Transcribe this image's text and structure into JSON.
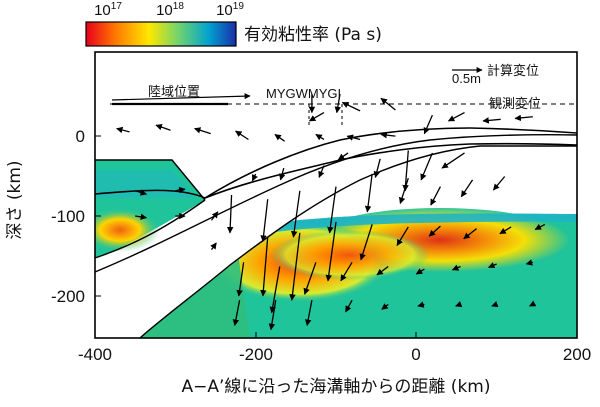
{
  "colorbar": {
    "tick_base": "10",
    "ticks": [
      {
        "exp": "17"
      },
      {
        "exp": "18"
      },
      {
        "exp": "19"
      }
    ],
    "title": "有効粘性率 (Pa s)",
    "colors": [
      "#e8001c",
      "#ff7a00",
      "#ffe800",
      "#6fd36f",
      "#00a2d0",
      "#1b2ea8"
    ]
  },
  "legend": {
    "scale_arrow_label": "0.5m",
    "computed_label": "計算変位",
    "observed_label": "観測変位",
    "land_label": "陸域位置",
    "stations_label": "MYGWMYGI"
  },
  "axes": {
    "xlabel": "A−A’線に沿った海溝軸からの距離 (km)",
    "ylabel": "深さ (km)"
  },
  "chart_data": {
    "type": "field",
    "title": "有効粘性率 (Pa s)",
    "xlabel": "A−A’線に沿った海溝軸からの距離 (km)",
    "ylabel": "深さ (km)",
    "xlim": [
      -400,
      200
    ],
    "ylim": [
      -250,
      90
    ],
    "xticks": [
      "-400",
      "-200",
      "0",
      "200"
    ],
    "yticks": [
      "0",
      "-100",
      "-200"
    ],
    "colorbar_range": [
      "10^17",
      "10^19"
    ],
    "grid": false,
    "arrows_computed": [
      {
        "x": -357,
        "y": -5,
        "dx": -16,
        "dy": 4
      },
      {
        "x": -306,
        "y": -3,
        "dx": -18,
        "dy": 6
      },
      {
        "x": -256,
        "y": -7,
        "dx": -20,
        "dy": 6
      },
      {
        "x": -209,
        "y": -14,
        "dx": -16,
        "dy": 10
      },
      {
        "x": -164,
        "y": -16,
        "dx": -12,
        "dy": 8
      },
      {
        "x": -115,
        "y": -14,
        "dx": -10,
        "dy": 6
      },
      {
        "x": -70,
        "y": -14,
        "dx": -16,
        "dy": 4
      },
      {
        "x": -26,
        "y": -10,
        "dx": -18,
        "dy": 2
      },
      {
        "x": -26,
        "y": 21,
        "dx": -18,
        "dy": 14
      },
      {
        "x": -70,
        "y": 20,
        "dx": -22,
        "dy": 10
      },
      {
        "x": -115,
        "y": 18,
        "dx": -18,
        "dy": -10
      },
      {
        "x": 20,
        "y": 15,
        "dx": -10,
        "dy": -22
      },
      {
        "x": 60,
        "y": 18,
        "dx": -20,
        "dy": -10
      },
      {
        "x": 105,
        "y": 10,
        "dx": -22,
        "dy": -2
      },
      {
        "x": 145,
        "y": 13,
        "dx": -22,
        "dy": -2
      },
      {
        "x": -10,
        "y": -27,
        "dx": -4,
        "dy": -48
      },
      {
        "x": 20,
        "y": -30,
        "dx": -14,
        "dy": -32
      },
      {
        "x": 60,
        "y": -30,
        "dx": -28,
        "dy": -18
      },
      {
        "x": -45,
        "y": -37,
        "dx": -6,
        "dy": -22
      },
      {
        "x": -85,
        "y": -30,
        "dx": -12,
        "dy": -8
      },
      {
        "x": -115,
        "y": -45,
        "dx": -6,
        "dy": -14
      },
      {
        "x": -165,
        "y": -48,
        "dx": -4,
        "dy": -14
      },
      {
        "x": -200,
        "y": -55,
        "dx": -4,
        "dy": -8
      },
      {
        "x": -230,
        "y": -80,
        "dx": -2,
        "dy": -45
      },
      {
        "x": -185,
        "y": -85,
        "dx": -6,
        "dy": -50
      },
      {
        "x": -145,
        "y": -75,
        "dx": -8,
        "dy": -55
      },
      {
        "x": -100,
        "y": -70,
        "dx": -8,
        "dy": -55
      },
      {
        "x": -55,
        "y": -55,
        "dx": -6,
        "dy": -45
      },
      {
        "x": -10,
        "y": -60,
        "dx": -10,
        "dy": -30
      },
      {
        "x": 30,
        "y": -70,
        "dx": -12,
        "dy": -22
      },
      {
        "x": 70,
        "y": -62,
        "dx": -14,
        "dy": -20
      },
      {
        "x": 110,
        "y": -58,
        "dx": -14,
        "dy": -16
      },
      {
        "x": -185,
        "y": -130,
        "dx": -6,
        "dy": -70
      },
      {
        "x": -145,
        "y": -125,
        "dx": -10,
        "dy": -80
      },
      {
        "x": -100,
        "y": -112,
        "dx": -10,
        "dy": -70
      },
      {
        "x": -55,
        "y": -115,
        "dx": -14,
        "dy": -42
      },
      {
        "x": -10,
        "y": -118,
        "dx": -14,
        "dy": -22
      },
      {
        "x": 30,
        "y": -117,
        "dx": -14,
        "dy": -12
      },
      {
        "x": 75,
        "y": -120,
        "dx": -16,
        "dy": -12
      },
      {
        "x": 118,
        "y": -118,
        "dx": -14,
        "dy": -8
      },
      {
        "x": 160,
        "y": -115,
        "dx": -12,
        "dy": -6
      },
      {
        "x": -350,
        "y": -75,
        "dx": 14,
        "dy": -4
      },
      {
        "x": -300,
        "y": -75,
        "dx": 12,
        "dy": 2
      },
      {
        "x": -350,
        "y": -105,
        "dx": 14,
        "dy": -2
      },
      {
        "x": -300,
        "y": -105,
        "dx": 12,
        "dy": 0
      },
      {
        "x": -255,
        "y": -110,
        "dx": 8,
        "dy": 10
      },
      {
        "x": -255,
        "y": -145,
        "dx": 6,
        "dy": 8
      },
      {
        "x": -215,
        "y": -160,
        "dx": -6,
        "dy": -40
      },
      {
        "x": -170,
        "y": -165,
        "dx": -10,
        "dy": -55
      },
      {
        "x": -125,
        "y": -160,
        "dx": -14,
        "dy": -38
      },
      {
        "x": -80,
        "y": -160,
        "dx": -14,
        "dy": -22
      },
      {
        "x": -35,
        "y": -165,
        "dx": -14,
        "dy": -10
      },
      {
        "x": 10,
        "y": -168,
        "dx": -10,
        "dy": -6
      },
      {
        "x": 55,
        "y": -165,
        "dx": -10,
        "dy": -4
      },
      {
        "x": 100,
        "y": -162,
        "dx": -10,
        "dy": -4
      },
      {
        "x": 145,
        "y": -160,
        "dx": -8,
        "dy": -2
      },
      {
        "x": -220,
        "y": -205,
        "dx": -6,
        "dy": -30
      },
      {
        "x": -175,
        "y": -205,
        "dx": -6,
        "dy": -35
      },
      {
        "x": -130,
        "y": -205,
        "dx": -6,
        "dy": -30
      },
      {
        "x": -80,
        "y": -205,
        "dx": -8,
        "dy": -14
      },
      {
        "x": -35,
        "y": -210,
        "dx": -8,
        "dy": -6
      },
      {
        "x": 10,
        "y": -210,
        "dx": -8,
        "dy": -2
      },
      {
        "x": 55,
        "y": -210,
        "dx": -6,
        "dy": -2
      },
      {
        "x": 100,
        "y": -210,
        "dx": -6,
        "dy": -2
      },
      {
        "x": 145,
        "y": -210,
        "dx": -4,
        "dy": -2
      }
    ],
    "arrows_observed": [
      {
        "x": -130,
        "y": 40,
        "dx": 0,
        "dy": -22
      },
      {
        "x": -95,
        "y": 40,
        "dx": -4,
        "dy": -22
      }
    ]
  }
}
